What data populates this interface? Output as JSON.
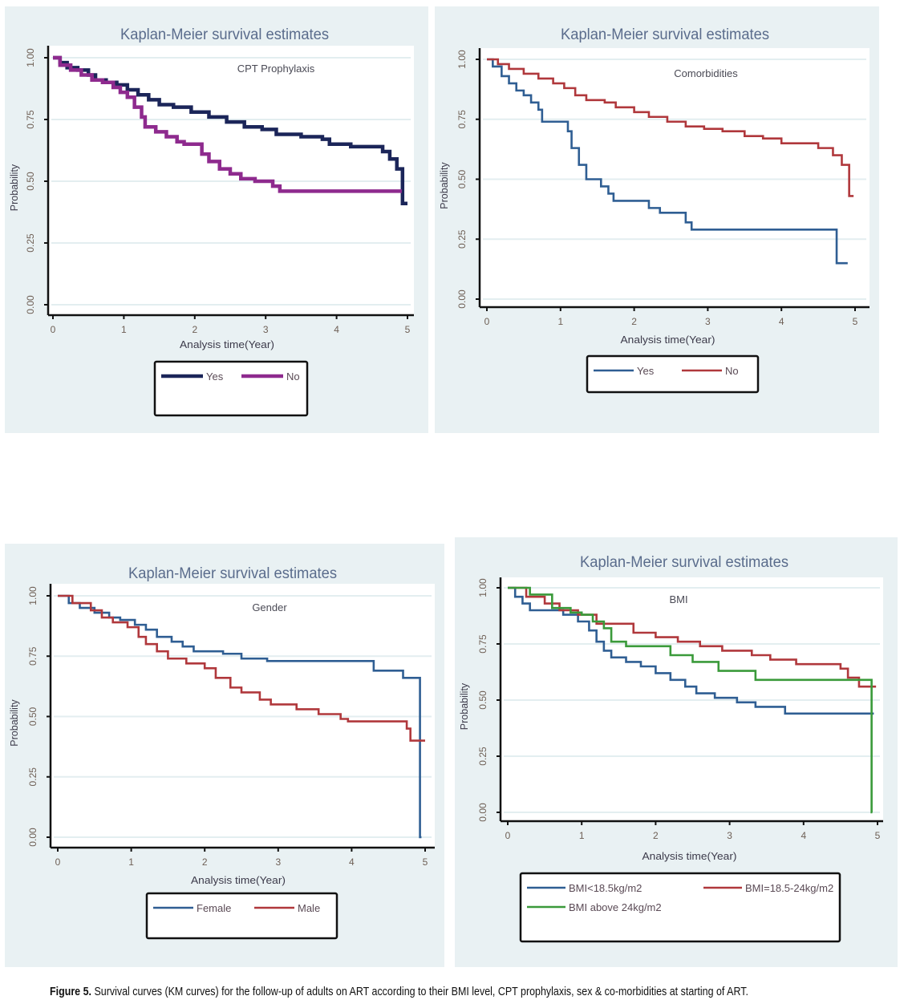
{
  "figure": {
    "caption_label": "Figure 5.",
    "caption_text": " Survival curves (KM curves) for the follow-up of adults on ART according to their BMI level, CPT prophylaxis, sex & co-morbidities at starting of ART."
  },
  "chart_data": [
    {
      "id": "cpt",
      "type": "line",
      "step": true,
      "title": "Kaplan-Meier survival estimates",
      "subtitle": "CPT Prophylaxis",
      "xlabel": "Analysis time(Year)",
      "ylabel": "Probability",
      "xlim": [
        0,
        5
      ],
      "ylim": [
        0,
        1
      ],
      "xticks": [
        "0",
        "1",
        "2",
        "3",
        "4",
        "5"
      ],
      "yticks": [
        "0.00",
        "0.25",
        "0.50",
        "0.75",
        "1.00"
      ],
      "grid": true,
      "legend_position": "bottom",
      "series": [
        {
          "name": "Yes",
          "color": "#1b2559",
          "x": [
            0,
            0.1,
            0.2,
            0.35,
            0.5,
            0.6,
            0.75,
            0.9,
            1.05,
            1.2,
            1.35,
            1.5,
            1.7,
            1.95,
            2.2,
            2.45,
            2.7,
            2.95,
            3.15,
            3.5,
            3.8,
            3.9,
            4.2,
            4.55,
            4.65,
            4.75,
            4.85,
            4.93,
            5.0
          ],
          "y": [
            1.0,
            0.98,
            0.96,
            0.95,
            0.93,
            0.91,
            0.9,
            0.89,
            0.87,
            0.85,
            0.83,
            0.81,
            0.8,
            0.78,
            0.76,
            0.74,
            0.72,
            0.71,
            0.69,
            0.68,
            0.67,
            0.65,
            0.64,
            0.64,
            0.62,
            0.59,
            0.55,
            0.41,
            0.41
          ]
        },
        {
          "name": "No",
          "color": "#8e2a8e",
          "x": [
            0,
            0.1,
            0.25,
            0.4,
            0.55,
            0.7,
            0.85,
            0.95,
            1.05,
            1.15,
            1.25,
            1.3,
            1.45,
            1.6,
            1.75,
            1.85,
            2.0,
            2.1,
            2.2,
            2.35,
            2.5,
            2.65,
            2.85,
            3.0,
            3.1,
            3.2,
            4.92
          ],
          "y": [
            1.0,
            0.97,
            0.95,
            0.93,
            0.91,
            0.9,
            0.88,
            0.86,
            0.84,
            0.8,
            0.76,
            0.72,
            0.7,
            0.68,
            0.66,
            0.65,
            0.65,
            0.61,
            0.58,
            0.55,
            0.53,
            0.51,
            0.5,
            0.5,
            0.48,
            0.46,
            0.46
          ]
        }
      ]
    },
    {
      "id": "comorbidities",
      "type": "line",
      "step": true,
      "title": "Kaplan-Meier survival estimates",
      "subtitle": "Comorbidities",
      "xlabel": "Analysis time(Year)",
      "ylabel": "Probability",
      "xlim": [
        0,
        5
      ],
      "ylim": [
        0,
        1
      ],
      "xticks": [
        "0",
        "1",
        "2",
        "3",
        "4",
        "5"
      ],
      "yticks": [
        "0.00",
        "0.25",
        "0.50",
        "0.75",
        "1.00"
      ],
      "grid": true,
      "legend_position": "bottom",
      "series": [
        {
          "name": "Yes",
          "color": "#2f5e93",
          "x": [
            0,
            0.08,
            0.2,
            0.3,
            0.4,
            0.5,
            0.6,
            0.7,
            0.75,
            1.05,
            1.1,
            1.15,
            1.25,
            1.35,
            1.55,
            1.65,
            1.72,
            2.2,
            2.35,
            2.7,
            2.78,
            4.75,
            4.9
          ],
          "y": [
            1.0,
            0.97,
            0.93,
            0.9,
            0.87,
            0.85,
            0.82,
            0.79,
            0.74,
            0.74,
            0.7,
            0.63,
            0.56,
            0.5,
            0.47,
            0.44,
            0.41,
            0.38,
            0.36,
            0.32,
            0.29,
            0.15,
            0.15
          ]
        },
        {
          "name": "No",
          "color": "#b0383c",
          "x": [
            0,
            0.15,
            0.3,
            0.5,
            0.7,
            0.9,
            1.05,
            1.2,
            1.35,
            1.6,
            1.75,
            2.0,
            2.2,
            2.45,
            2.7,
            2.95,
            3.2,
            3.5,
            3.75,
            4.0,
            4.5,
            4.7,
            4.82,
            4.92,
            4.98
          ],
          "y": [
            1.0,
            0.98,
            0.96,
            0.94,
            0.92,
            0.9,
            0.88,
            0.85,
            0.83,
            0.82,
            0.8,
            0.78,
            0.76,
            0.74,
            0.72,
            0.71,
            0.7,
            0.68,
            0.67,
            0.65,
            0.63,
            0.6,
            0.56,
            0.43,
            0.43
          ]
        }
      ]
    },
    {
      "id": "gender",
      "type": "line",
      "step": true,
      "title": "Kaplan-Meier survival estimates",
      "subtitle": "Gender",
      "xlabel": "Analysis time(Year)",
      "ylabel": "Probability",
      "xlim": [
        0,
        5
      ],
      "ylim": [
        0,
        1
      ],
      "xticks": [
        "0",
        "1",
        "2",
        "3",
        "4",
        "5"
      ],
      "yticks": [
        "0.00",
        "0.25",
        "0.50",
        "0.75",
        "1.00"
      ],
      "grid": true,
      "legend_position": "bottom",
      "series": [
        {
          "name": "Female",
          "color": "#2f5e93",
          "x": [
            0,
            0.15,
            0.3,
            0.5,
            0.7,
            0.85,
            1.05,
            1.2,
            1.35,
            1.55,
            1.7,
            1.85,
            2.25,
            2.5,
            2.85,
            4.3,
            4.7,
            4.93,
            4.95
          ],
          "y": [
            1.0,
            0.97,
            0.95,
            0.93,
            0.91,
            0.9,
            0.88,
            0.86,
            0.83,
            0.81,
            0.79,
            0.77,
            0.76,
            0.74,
            0.73,
            0.69,
            0.66,
            0.0,
            0.0
          ]
        },
        {
          "name": "Male",
          "color": "#b0383c",
          "x": [
            0,
            0.2,
            0.45,
            0.6,
            0.75,
            0.95,
            1.1,
            1.2,
            1.35,
            1.5,
            1.75,
            2.0,
            2.15,
            2.35,
            2.5,
            2.75,
            2.9,
            3.25,
            3.55,
            3.85,
            3.95,
            4.75,
            4.8,
            5.0
          ],
          "y": [
            1.0,
            0.97,
            0.94,
            0.91,
            0.89,
            0.87,
            0.83,
            0.8,
            0.77,
            0.74,
            0.72,
            0.7,
            0.66,
            0.62,
            0.6,
            0.57,
            0.55,
            0.53,
            0.51,
            0.49,
            0.48,
            0.45,
            0.4,
            0.4
          ]
        }
      ]
    },
    {
      "id": "bmi",
      "type": "line",
      "step": true,
      "title": "Kaplan-Meier survival estimates",
      "subtitle": "BMI",
      "xlabel": "Analysis time(Year)",
      "ylabel": "Probability",
      "xlim": [
        0,
        5
      ],
      "ylim": [
        0,
        1
      ],
      "xticks": [
        "0",
        "1",
        "2",
        "3",
        "4",
        "5"
      ],
      "yticks": [
        "0.00",
        "0.25",
        "0.50",
        "0.75",
        "1.00"
      ],
      "grid": true,
      "legend_position": "bottom",
      "series": [
        {
          "name": "BMI<18.5kg/m2",
          "color": "#2f5e93",
          "x": [
            0,
            0.1,
            0.2,
            0.3,
            0.75,
            0.95,
            1.1,
            1.2,
            1.3,
            1.4,
            1.6,
            1.8,
            2.0,
            2.2,
            2.4,
            2.55,
            2.8,
            3.1,
            3.35,
            3.75,
            4.95
          ],
          "y": [
            1.0,
            0.96,
            0.93,
            0.9,
            0.88,
            0.85,
            0.81,
            0.76,
            0.72,
            0.69,
            0.67,
            0.65,
            0.62,
            0.59,
            0.56,
            0.53,
            0.51,
            0.49,
            0.47,
            0.44,
            0.44
          ]
        },
        {
          "name": "BMI=18.5-24kg/m2",
          "color": "#b0383c",
          "x": [
            0,
            0.25,
            0.5,
            0.7,
            0.95,
            1.2,
            1.55,
            1.7,
            2.0,
            2.3,
            2.6,
            2.9,
            3.3,
            3.55,
            3.9,
            4.5,
            4.6,
            4.75,
            4.98
          ],
          "y": [
            1.0,
            0.96,
            0.93,
            0.9,
            0.88,
            0.84,
            0.84,
            0.8,
            0.78,
            0.76,
            0.74,
            0.72,
            0.7,
            0.68,
            0.66,
            0.64,
            0.6,
            0.56,
            0.56
          ]
        },
        {
          "name": "BMI above 24kg/m2",
          "color": "#3a9a3a",
          "x": [
            0,
            0.3,
            0.6,
            0.85,
            1.0,
            1.15,
            1.3,
            1.4,
            1.6,
            2.2,
            2.5,
            2.85,
            3.35,
            3.55,
            4.92,
            4.93
          ],
          "y": [
            1.0,
            0.97,
            0.91,
            0.89,
            0.88,
            0.85,
            0.82,
            0.76,
            0.74,
            0.7,
            0.67,
            0.63,
            0.59,
            0.59,
            0.0,
            0.0
          ]
        }
      ]
    }
  ]
}
